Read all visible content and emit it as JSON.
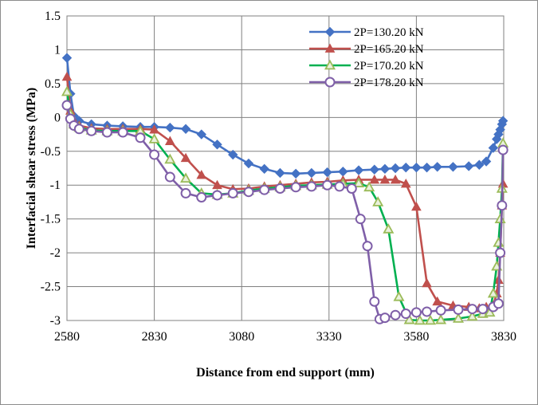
{
  "chart_data": {
    "type": "line",
    "title": "",
    "xlabel": "Distance from end support (mm)",
    "ylabel": "Interfacial shear stress (MPa)",
    "xlim": [
      2580,
      3830
    ],
    "ylim": [
      -3,
      1.5
    ],
    "xticks": [
      2580,
      2830,
      3080,
      3330,
      3580,
      3830
    ],
    "yticks": [
      1.5,
      1,
      0.5,
      0,
      -0.5,
      -1,
      -1.5,
      -2,
      -2.5,
      -3
    ],
    "grid": true,
    "legend_position": "top-right",
    "series": [
      {
        "name": "2P=130.20 kN",
        "color": "#4472C4",
        "marker": "diamond",
        "x": [
          2580,
          2590,
          2600,
          2615,
          2650,
          2695,
          2740,
          2790,
          2830,
          2875,
          2920,
          2965,
          3010,
          3055,
          3100,
          3145,
          3190,
          3235,
          3280,
          3325,
          3370,
          3415,
          3460,
          3490,
          3520,
          3550,
          3580,
          3610,
          3640,
          3685,
          3730,
          3760,
          3780,
          3800,
          3810,
          3815,
          3820,
          3825,
          3828
        ],
        "y": [
          0.88,
          0.35,
          0.02,
          -0.05,
          -0.1,
          -0.12,
          -0.13,
          -0.14,
          -0.14,
          -0.15,
          -0.17,
          -0.25,
          -0.4,
          -0.55,
          -0.68,
          -0.76,
          -0.82,
          -0.83,
          -0.82,
          -0.81,
          -0.8,
          -0.78,
          -0.77,
          -0.76,
          -0.75,
          -0.74,
          -0.74,
          -0.74,
          -0.73,
          -0.73,
          -0.72,
          -0.7,
          -0.65,
          -0.45,
          -0.32,
          -0.25,
          -0.18,
          -0.1,
          -0.05
        ]
      },
      {
        "name": "2P=165.20 kN",
        "color": "#C0504D",
        "marker": "triangle",
        "x": [
          2580,
          2590,
          2600,
          2615,
          2650,
          2695,
          2740,
          2790,
          2830,
          2875,
          2920,
          2965,
          3010,
          3055,
          3100,
          3145,
          3190,
          3235,
          3280,
          3325,
          3370,
          3415,
          3460,
          3490,
          3520,
          3550,
          3580,
          3610,
          3640,
          3685,
          3730,
          3760,
          3780,
          3800,
          3810,
          3815,
          3820,
          3825,
          3828
        ],
        "y": [
          0.6,
          0.1,
          -0.05,
          -0.12,
          -0.16,
          -0.17,
          -0.17,
          -0.17,
          -0.18,
          -0.35,
          -0.6,
          -0.85,
          -1.0,
          -1.06,
          -1.05,
          -1.02,
          -1.0,
          -0.98,
          -0.96,
          -0.95,
          -0.93,
          -0.92,
          -0.92,
          -0.92,
          -0.92,
          -0.98,
          -1.32,
          -2.45,
          -2.72,
          -2.78,
          -2.8,
          -2.82,
          -2.8,
          -2.78,
          -2.6,
          -2.4,
          -2.0,
          -1.3,
          -0.98
        ]
      },
      {
        "name": "2P=170.20 kN",
        "color": "#00B050",
        "marker": "triangle-open",
        "x": [
          2580,
          2590,
          2600,
          2615,
          2650,
          2695,
          2740,
          2790,
          2830,
          2875,
          2920,
          2965,
          3010,
          3055,
          3100,
          3145,
          3190,
          3235,
          3280,
          3325,
          3370,
          3415,
          3445,
          3470,
          3500,
          3530,
          3560,
          3590,
          3620,
          3650,
          3700,
          3740,
          3770,
          3790,
          3800,
          3810,
          3815,
          3820,
          3825,
          3828
        ],
        "y": [
          0.38,
          0.05,
          -0.1,
          -0.15,
          -0.19,
          -0.2,
          -0.2,
          -0.2,
          -0.32,
          -0.62,
          -0.9,
          -1.12,
          -1.14,
          -1.12,
          -1.08,
          -1.05,
          -1.03,
          -1.01,
          -1.0,
          -0.99,
          -0.98,
          -0.97,
          -1.03,
          -1.25,
          -1.65,
          -2.65,
          -2.99,
          -3.0,
          -3.0,
          -2.99,
          -2.97,
          -2.94,
          -2.9,
          -2.88,
          -2.6,
          -2.2,
          -1.85,
          -1.5,
          -1.05,
          -0.38
        ]
      },
      {
        "name": "2P=178.20 kN",
        "color": "#7F5FA8",
        "marker": "circle-open",
        "x": [
          2580,
          2590,
          2600,
          2615,
          2650,
          2695,
          2740,
          2790,
          2830,
          2875,
          2920,
          2965,
          3010,
          3055,
          3100,
          3145,
          3190,
          3235,
          3280,
          3325,
          3360,
          3395,
          3420,
          3440,
          3460,
          3475,
          3490,
          3520,
          3550,
          3580,
          3610,
          3650,
          3700,
          3740,
          3770,
          3800,
          3815,
          3820,
          3825,
          3828
        ],
        "y": [
          0.18,
          -0.02,
          -0.12,
          -0.17,
          -0.2,
          -0.22,
          -0.22,
          -0.3,
          -0.55,
          -0.88,
          -1.12,
          -1.18,
          -1.15,
          -1.12,
          -1.1,
          -1.07,
          -1.05,
          -1.03,
          -1.02,
          -1.0,
          -1.02,
          -1.05,
          -1.5,
          -1.9,
          -2.72,
          -2.98,
          -2.96,
          -2.92,
          -2.9,
          -2.88,
          -2.87,
          -2.85,
          -2.84,
          -2.83,
          -2.83,
          -2.8,
          -2.75,
          -2.0,
          -1.3,
          -0.48
        ]
      }
    ]
  }
}
